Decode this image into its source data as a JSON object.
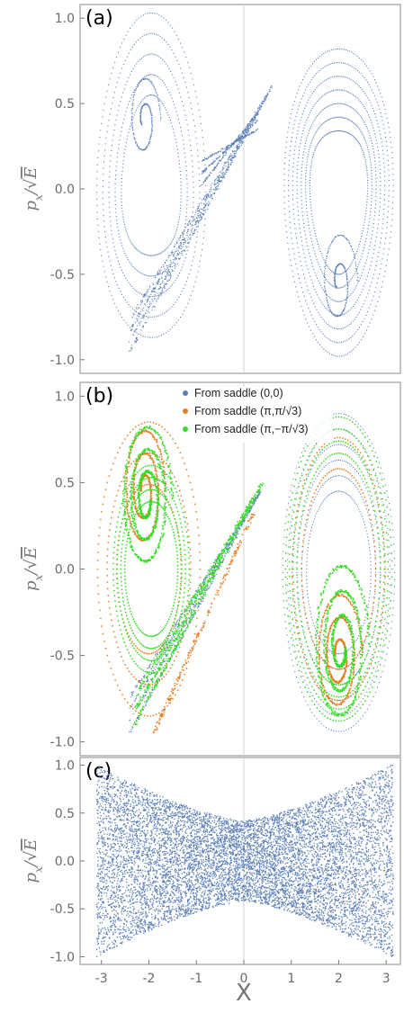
{
  "figure": {
    "x_axis_label": "X",
    "y_axis_label_main": "p",
    "y_axis_label_sub": "x",
    "y_axis_label_den": "E"
  },
  "chart_data": [
    {
      "panel": "(a)",
      "type": "scatter",
      "xlim": [
        -3.45,
        3.3
      ],
      "ylim": [
        -1.08,
        1.08
      ],
      "yticks": [
        "1.0",
        "0.5",
        "0.0",
        "-0.5",
        "-1.0"
      ],
      "ytick_values": [
        1.0,
        0.5,
        0.0,
        -0.5,
        -1.0
      ],
      "series": [
        {
          "color": "#5b7fb8",
          "points": []
        }
      ]
    },
    {
      "panel": "(b)",
      "type": "scatter",
      "xlim": [
        -3.45,
        3.3
      ],
      "ylim": [
        -1.08,
        1.08
      ],
      "yticks": [
        "1.0",
        "0.5",
        "0.0",
        "-0.5",
        "-1.0"
      ],
      "ytick_values": [
        1.0,
        0.5,
        0.0,
        -0.5,
        -1.0
      ],
      "legend": {
        "placement": "top-center",
        "entries": [
          {
            "text": "From saddle (0,0)",
            "color": "#5b7fb8"
          },
          {
            "text": "From saddle (π,π/√3)",
            "color": "#e87d21"
          },
          {
            "text": "From saddle (π,−π/√3)",
            "color": "#33dd22"
          }
        ]
      },
      "series": [
        {
          "name": "From saddle (0,0)",
          "color": "#5b7fb8",
          "points": []
        },
        {
          "name": "From saddle (π,π/√3)",
          "color": "#e87d21",
          "points": []
        },
        {
          "name": "From saddle (π,−π/√3)",
          "color": "#33dd22",
          "points": []
        }
      ]
    },
    {
      "panel": "(c)",
      "type": "scatter",
      "xlim": [
        -3.45,
        3.3
      ],
      "ylim": [
        -1.08,
        1.08
      ],
      "yticks": [
        "1.0",
        "0.5",
        "0.0",
        "-0.5",
        "-1.0"
      ],
      "ytick_values": [
        1.0,
        0.5,
        0.0,
        -0.5,
        -1.0
      ],
      "xticks": [
        "-3",
        "-2",
        "-1",
        "0",
        "1",
        "2",
        "3"
      ],
      "xtick_values": [
        -3,
        -2,
        -1,
        0,
        1,
        2,
        3
      ],
      "series": [
        {
          "color": "#5b7fb8",
          "points": []
        }
      ]
    }
  ]
}
